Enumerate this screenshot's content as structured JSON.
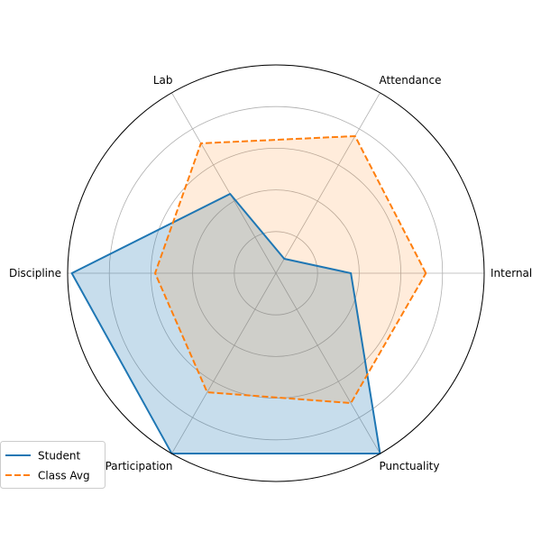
{
  "chart_data": {
    "type": "radar",
    "axes": [
      "Internal",
      "Attendance",
      "Lab",
      "Discipline",
      "Participation",
      "Punctuality"
    ],
    "rmax": 5,
    "grid_levels": [
      1,
      2,
      3,
      4,
      5
    ],
    "grid": true,
    "tick_labels_shown": false,
    "series": [
      {
        "name": "Student",
        "values": [
          1.8,
          0.4,
          2.2,
          4.9,
          5.0,
          5.0
        ],
        "color": "#1f77b4",
        "line_style": "solid",
        "fill_opacity": 0.25
      },
      {
        "name": "Class Avg",
        "values": [
          3.6,
          3.8,
          3.6,
          2.9,
          3.3,
          3.6
        ],
        "color": "#ff7f0e",
        "line_style": "dashed",
        "fill_opacity": 0.15
      }
    ],
    "legend": {
      "placement": "bottom-left"
    }
  }
}
